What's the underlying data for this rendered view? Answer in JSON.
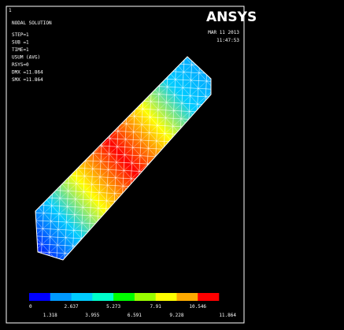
{
  "window": "1",
  "header": {
    "title": "NODAL SOLUTION",
    "lines": [
      "STEP=1",
      "SUB =1",
      "TIME=1",
      "USUM      (AVG)",
      "RSYS=0",
      "DMX =11.864",
      "SMX =11.864"
    ]
  },
  "brand": "ANSYS",
  "date": "MAR 11 2013",
  "time": "11:47:53",
  "legend": {
    "colors": [
      "#0000ff",
      "#0099ff",
      "#00ccff",
      "#00ffcc",
      "#00ff00",
      "#99ff00",
      "#ffff00",
      "#ffaa00",
      "#ff0000"
    ],
    "labels_top": [
      "0",
      "2.637",
      "5.273",
      "7.91",
      "10.546"
    ],
    "labels_bottom": [
      "1.318",
      "3.955",
      "6.591",
      "9.228",
      "11.864"
    ]
  }
}
